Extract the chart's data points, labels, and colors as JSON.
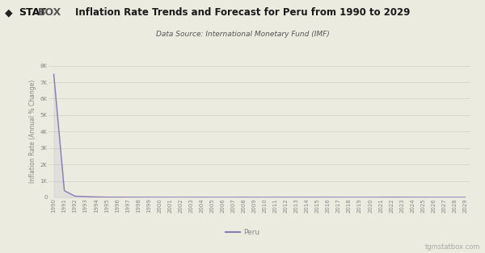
{
  "title": "Inflation Rate Trends and Forecast for Peru from 1990 to 2029",
  "subtitle": "Data Source: International Monetary Fund (IMF)",
  "ylabel": "Inflation Rate (Annual % Change)",
  "legend_label": "Peru",
  "line_color": "#8B7BB5",
  "fill_color": "#9B8BC5",
  "background_color": "#EBEBDF",
  "plot_background": "#EBEBDF",
  "grid_color": "#D0D0C8",
  "watermark": "tgmstatbox.com",
  "tick_color": "#888888",
  "years": [
    1990,
    1991,
    1992,
    1993,
    1994,
    1995,
    1996,
    1997,
    1998,
    1999,
    2000,
    2001,
    2002,
    2003,
    2004,
    2005,
    2006,
    2007,
    2008,
    2009,
    2010,
    2011,
    2012,
    2013,
    2014,
    2015,
    2016,
    2017,
    2018,
    2019,
    2020,
    2021,
    2022,
    2023,
    2024,
    2025,
    2026,
    2027,
    2028,
    2029
  ],
  "values": [
    7481.7,
    409.5,
    73.5,
    48.6,
    23.7,
    11.1,
    11.5,
    8.5,
    7.3,
    3.5,
    3.8,
    2.0,
    0.2,
    2.3,
    3.7,
    1.6,
    2.0,
    1.8,
    5.8,
    2.9,
    1.5,
    3.4,
    3.7,
    2.8,
    3.2,
    3.5,
    3.6,
    2.8,
    1.3,
    2.1,
    1.8,
    4.0,
    7.9,
    6.4,
    2.4,
    2.2,
    2.1,
    2.0,
    2.0,
    2.0
  ],
  "ylim": [
    0,
    8000
  ],
  "yticks": [
    0,
    1000,
    2000,
    3000,
    4000,
    5000,
    6000,
    7000,
    8000
  ],
  "ytick_labels": [
    "0",
    "1K",
    "2K",
    "3K",
    "4K",
    "5K",
    "6K",
    "7K",
    "8K"
  ],
  "title_fontsize": 8.5,
  "subtitle_fontsize": 6.5,
  "ylabel_fontsize": 5.5,
  "tick_fontsize": 5,
  "legend_fontsize": 6.5,
  "watermark_fontsize": 6
}
